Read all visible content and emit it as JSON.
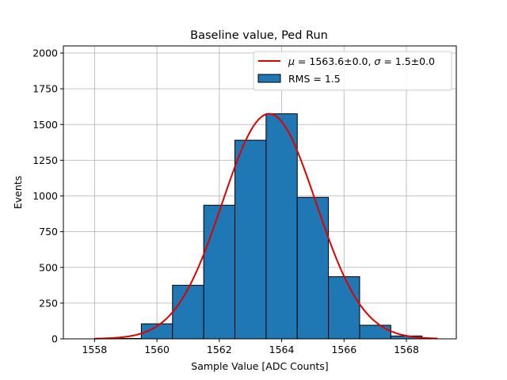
{
  "chart_data": {
    "type": "bar",
    "title": "Baseline value, Ped Run",
    "xlabel": "Sample Value [ADC Counts]",
    "ylabel": "Events",
    "xlim": [
      1557,
      1569.6
    ],
    "ylim": [
      0,
      2050
    ],
    "x_ticks": [
      1558,
      1560,
      1562,
      1564,
      1566,
      1568
    ],
    "y_ticks": [
      0,
      250,
      500,
      750,
      1000,
      1250,
      1500,
      1750,
      2000
    ],
    "grid": true,
    "legend_position": "top-right",
    "bins": [
      {
        "x0": 1557.5,
        "x1": 1558.5,
        "value": 0
      },
      {
        "x0": 1558.5,
        "x1": 1559.5,
        "value": 3
      },
      {
        "x0": 1559.5,
        "x1": 1560.5,
        "value": 105
      },
      {
        "x0": 1560.5,
        "x1": 1561.5,
        "value": 375
      },
      {
        "x0": 1561.5,
        "x1": 1562.5,
        "value": 935
      },
      {
        "x0": 1562.5,
        "x1": 1563.5,
        "value": 1390
      },
      {
        "x0": 1563.5,
        "x1": 1564.5,
        "value": 1575
      },
      {
        "x0": 1564.5,
        "x1": 1565.5,
        "value": 990
      },
      {
        "x0": 1565.5,
        "x1": 1566.5,
        "value": 435
      },
      {
        "x0": 1566.5,
        "x1": 1567.5,
        "value": 95
      },
      {
        "x0": 1567.5,
        "x1": 1568.5,
        "value": 20
      }
    ],
    "fit": {
      "name": "μ = 1563.6±0.0, σ = 1.5±0.0",
      "mu": 1563.6,
      "sigma": 1.5,
      "amplitude": 1575,
      "x_range": [
        1558,
        1569
      ]
    },
    "legend": {
      "fit_label_prefix_mu": "μ",
      "fit_label_mu_value": " = 1563.6±0.0, ",
      "fit_label_prefix_sigma": "σ",
      "fit_label_sigma_value": " = 1.5±0.0",
      "hist_label": "RMS = 1.5"
    },
    "colors": {
      "bar_fill": "#1f77b4",
      "bar_edge": "#000000",
      "fit_line": "#e00000",
      "grid": "#b0b0b0"
    }
  }
}
